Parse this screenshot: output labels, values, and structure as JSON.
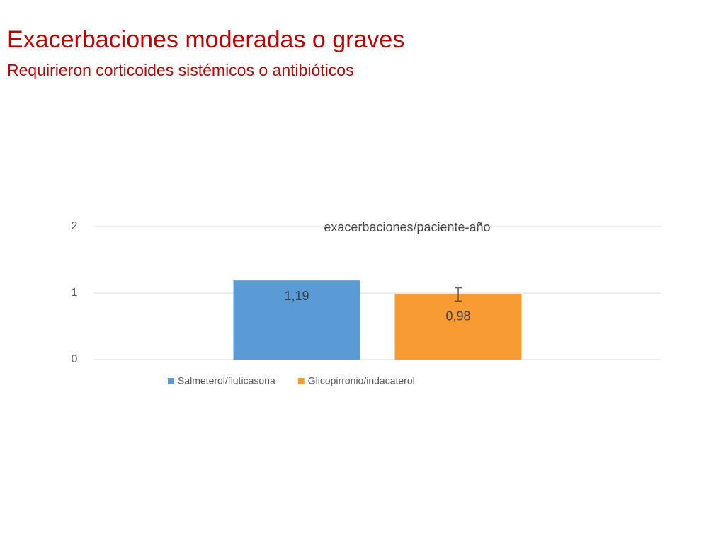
{
  "slide": {
    "title": "Exacerbaciones moderadas o graves",
    "subtitle": "Requirieron corticoides sistémicos o antibióticos"
  },
  "chart_data": {
    "type": "bar",
    "title": "exacerbaciones/paciente-año",
    "categories": [
      null
    ],
    "series": [
      {
        "name": "Salmeterol/fluticasona",
        "color": "#5b9bd5",
        "values": [
          1.19
        ],
        "value_labels": [
          "1,19"
        ]
      },
      {
        "name": "Glicopirronio/indacaterol",
        "color": "#f99b33",
        "values": [
          0.98
        ],
        "value_labels": [
          "0,98"
        ],
        "errors": [
          0.1
        ]
      }
    ],
    "ylim": [
      0,
      2
    ],
    "yticks": [
      0,
      1,
      2
    ],
    "grid": true,
    "legend": "bottom"
  }
}
